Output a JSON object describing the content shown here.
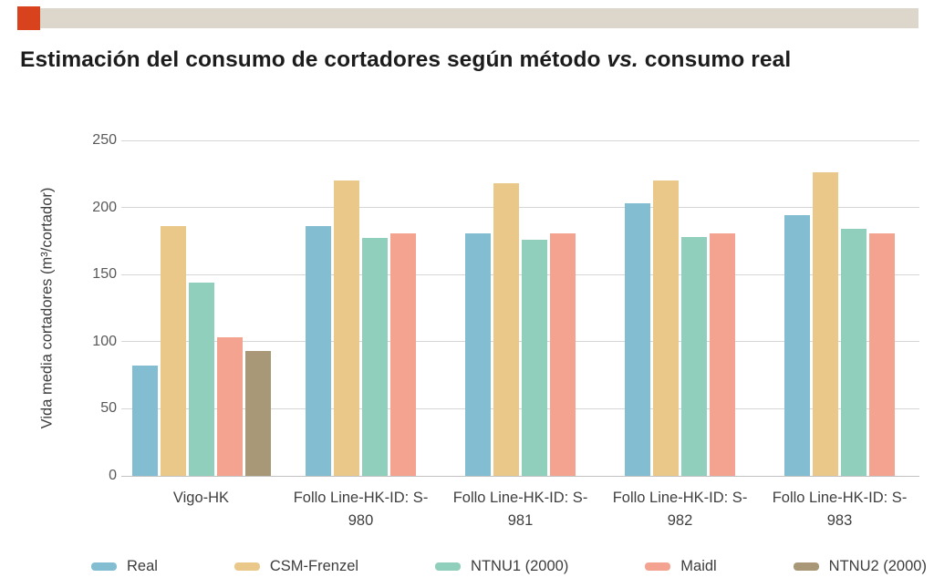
{
  "header": {
    "accent_color": "#d8421c",
    "bar_color": "#dcd7ca"
  },
  "title": {
    "prefix": "Estimación del consumo de cortadores según método ",
    "italic": "vs.",
    "suffix": " consumo real"
  },
  "chart_data": {
    "type": "bar",
    "title": "Estimación del consumo de cortadores según método vs. consumo real",
    "ylabel": "Vida media cortadores (m³/cortador)",
    "xlabel": "",
    "ylim": [
      0,
      250
    ],
    "ytick_step": 50,
    "grid": true,
    "legend_position": "bottom",
    "categories": [
      "Vigo-HK",
      "Follo Line-HK-ID: S-980",
      "Follo Line-HK-ID: S-981",
      "Follo Line-HK-ID: S-982",
      "Follo Line-HK-ID: S-983"
    ],
    "series": [
      {
        "name": "Real",
        "color": "#82bdd2",
        "values": [
          82,
          186,
          181,
          203,
          194
        ]
      },
      {
        "name": "CSM-Frenzel",
        "color": "#e9c88a",
        "values": [
          186,
          220,
          218,
          220,
          226
        ]
      },
      {
        "name": "NTNU1 (2000)",
        "color": "#8fcfbb",
        "values": [
          144,
          177,
          176,
          178,
          184
        ]
      },
      {
        "name": "Maidl",
        "color": "#f4a390",
        "values": [
          103,
          181,
          181,
          181,
          181
        ]
      },
      {
        "name": "NTNU2 (2000)",
        "color": "#a99878",
        "values": [
          93,
          null,
          null,
          null,
          null
        ]
      }
    ]
  }
}
